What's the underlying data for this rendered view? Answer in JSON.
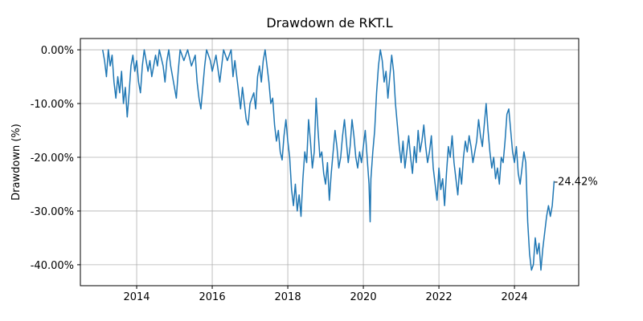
{
  "chart_data": {
    "type": "line",
    "title": "Drawdown de RKT.L",
    "ylabel": "Drawdown (%)",
    "xlim": [
      2012.51,
      2025.7
    ],
    "xticks": [
      2014,
      2016,
      2018,
      2020,
      2022,
      2024
    ],
    "ylim": [
      -43.9,
      2.1
    ],
    "yticks": [
      {
        "value": 0,
        "label": "0.00%"
      },
      {
        "value": -10,
        "label": "-10.00%"
      },
      {
        "value": -20,
        "label": "-20.00%"
      },
      {
        "value": -30,
        "label": "-30.00%"
      },
      {
        "value": -40,
        "label": "-40.00%"
      }
    ],
    "grid": true,
    "x": [
      2013.1,
      2013.15,
      2013.2,
      2013.25,
      2013.3,
      2013.35,
      2013.4,
      2013.45,
      2013.5,
      2013.55,
      2013.6,
      2013.65,
      2013.7,
      2013.75,
      2013.8,
      2013.85,
      2013.9,
      2013.95,
      2014.0,
      2014.05,
      2014.1,
      2014.15,
      2014.2,
      2014.3,
      2014.35,
      2014.4,
      2014.5,
      2014.55,
      2014.6,
      2014.7,
      2014.75,
      2014.8,
      2014.85,
      2014.9,
      2015.0,
      2015.05,
      2015.1,
      2015.15,
      2015.25,
      2015.35,
      2015.45,
      2015.55,
      2015.6,
      2015.65,
      2015.7,
      2015.75,
      2015.8,
      2015.85,
      2015.95,
      2016.0,
      2016.1,
      2016.2,
      2016.25,
      2016.3,
      2016.4,
      2016.5,
      2016.55,
      2016.6,
      2016.7,
      2016.75,
      2016.8,
      2016.9,
      2016.95,
      2017.0,
      2017.1,
      2017.15,
      2017.2,
      2017.25,
      2017.3,
      2017.35,
      2017.4,
      2017.45,
      2017.5,
      2017.55,
      2017.6,
      2017.65,
      2017.7,
      2017.75,
      2017.8,
      2017.85,
      2017.9,
      2017.95,
      2018.0,
      2018.05,
      2018.1,
      2018.15,
      2018.2,
      2018.25,
      2018.3,
      2018.35,
      2018.4,
      2018.45,
      2018.5,
      2018.55,
      2018.6,
      2018.65,
      2018.7,
      2018.75,
      2018.8,
      2018.85,
      2018.9,
      2018.95,
      2019.0,
      2019.05,
      2019.1,
      2019.15,
      2019.2,
      2019.25,
      2019.3,
      2019.35,
      2019.4,
      2019.45,
      2019.5,
      2019.55,
      2019.6,
      2019.65,
      2019.7,
      2019.75,
      2019.8,
      2019.85,
      2019.9,
      2019.95,
      2020.0,
      2020.05,
      2020.1,
      2020.15,
      2020.18,
      2020.2,
      2020.25,
      2020.3,
      2020.35,
      2020.4,
      2020.45,
      2020.5,
      2020.55,
      2020.6,
      2020.65,
      2020.7,
      2020.75,
      2020.8,
      2020.85,
      2020.9,
      2020.95,
      2021.0,
      2021.05,
      2021.1,
      2021.15,
      2021.2,
      2021.25,
      2021.3,
      2021.35,
      2021.4,
      2021.45,
      2021.5,
      2021.55,
      2021.6,
      2021.65,
      2021.7,
      2021.75,
      2021.8,
      2021.85,
      2021.9,
      2021.95,
      2022.0,
      2022.05,
      2022.1,
      2022.15,
      2022.2,
      2022.25,
      2022.3,
      2022.35,
      2022.4,
      2022.45,
      2022.5,
      2022.55,
      2022.6,
      2022.65,
      2022.7,
      2022.75,
      2022.8,
      2022.85,
      2022.9,
      2022.95,
      2023.0,
      2023.05,
      2023.1,
      2023.15,
      2023.2,
      2023.25,
      2023.3,
      2023.35,
      2023.4,
      2023.45,
      2023.5,
      2023.55,
      2023.6,
      2023.65,
      2023.7,
      2023.75,
      2023.8,
      2023.85,
      2023.9,
      2023.95,
      2024.0,
      2024.05,
      2024.1,
      2024.15,
      2024.2,
      2024.25,
      2024.3,
      2024.35,
      2024.4,
      2024.45,
      2024.5,
      2024.55,
      2024.6,
      2024.65,
      2024.7,
      2024.75,
      2024.8,
      2024.85,
      2024.9,
      2024.95,
      2025.0,
      2025.05
    ],
    "series": [
      {
        "name": "Drawdown",
        "color": "#1f77b4",
        "values": [
          0,
          -2,
          -5,
          0,
          -3,
          -1,
          -6,
          -9,
          -5,
          -8,
          -4,
          -10,
          -7,
          -12.5,
          -8,
          -3,
          -1,
          -4,
          -2,
          -6,
          -8,
          -3,
          0,
          -4,
          -2,
          -5,
          -1,
          -3,
          0,
          -3,
          -6,
          -2,
          0,
          -3,
          -7,
          -9,
          -4,
          0,
          -2,
          0,
          -3,
          -1,
          -6,
          -9,
          -11,
          -7,
          -3,
          0,
          -2,
          -4,
          -1,
          -6,
          -3,
          0,
          -2,
          0,
          -5,
          -2,
          -8,
          -11,
          -7,
          -13,
          -14,
          -10,
          -8,
          -11,
          -5,
          -3,
          -6,
          -2,
          0,
          -3,
          -6,
          -10,
          -9,
          -14,
          -17,
          -15,
          -19,
          -20.5,
          -16,
          -13,
          -17,
          -20,
          -26,
          -29,
          -25,
          -30,
          -27,
          -31,
          -24,
          -19,
          -21,
          -13,
          -17,
          -22,
          -19,
          -9,
          -15,
          -20,
          -19,
          -23,
          -25,
          -21,
          -28,
          -23,
          -19,
          -15,
          -18,
          -22,
          -20,
          -16,
          -13,
          -17,
          -21,
          -18,
          -13,
          -16,
          -20,
          -22,
          -19,
          -21,
          -18,
          -15,
          -20,
          -25,
          -32,
          -24,
          -19,
          -15,
          -8,
          -3,
          0,
          -2,
          -6,
          -4,
          -9,
          -5,
          -1,
          -4,
          -10,
          -14,
          -18,
          -21,
          -17,
          -22,
          -19,
          -16,
          -20,
          -23,
          -18,
          -21,
          -15,
          -19,
          -17,
          -14,
          -18,
          -21,
          -19,
          -16,
          -22,
          -25,
          -28,
          -22,
          -26,
          -24,
          -29,
          -23,
          -18,
          -20,
          -16,
          -21,
          -24,
          -27,
          -22,
          -25,
          -20,
          -17,
          -19,
          -16,
          -18,
          -21,
          -19,
          -17,
          -13,
          -16,
          -18,
          -14,
          -10,
          -15,
          -19,
          -22,
          -20,
          -24,
          -22,
          -25,
          -20,
          -21,
          -17,
          -12,
          -11,
          -15,
          -19,
          -21,
          -18,
          -23,
          -25,
          -22,
          -19,
          -21,
          -32,
          -38,
          -41,
          -40,
          -35,
          -38,
          -36,
          -41,
          -37,
          -34,
          -31,
          -29,
          -31,
          -29,
          -24.42
        ]
      }
    ],
    "annotation": {
      "x": 2025.05,
      "y": -24.42,
      "text": "-24.42%",
      "color": "#0000ff"
    }
  }
}
